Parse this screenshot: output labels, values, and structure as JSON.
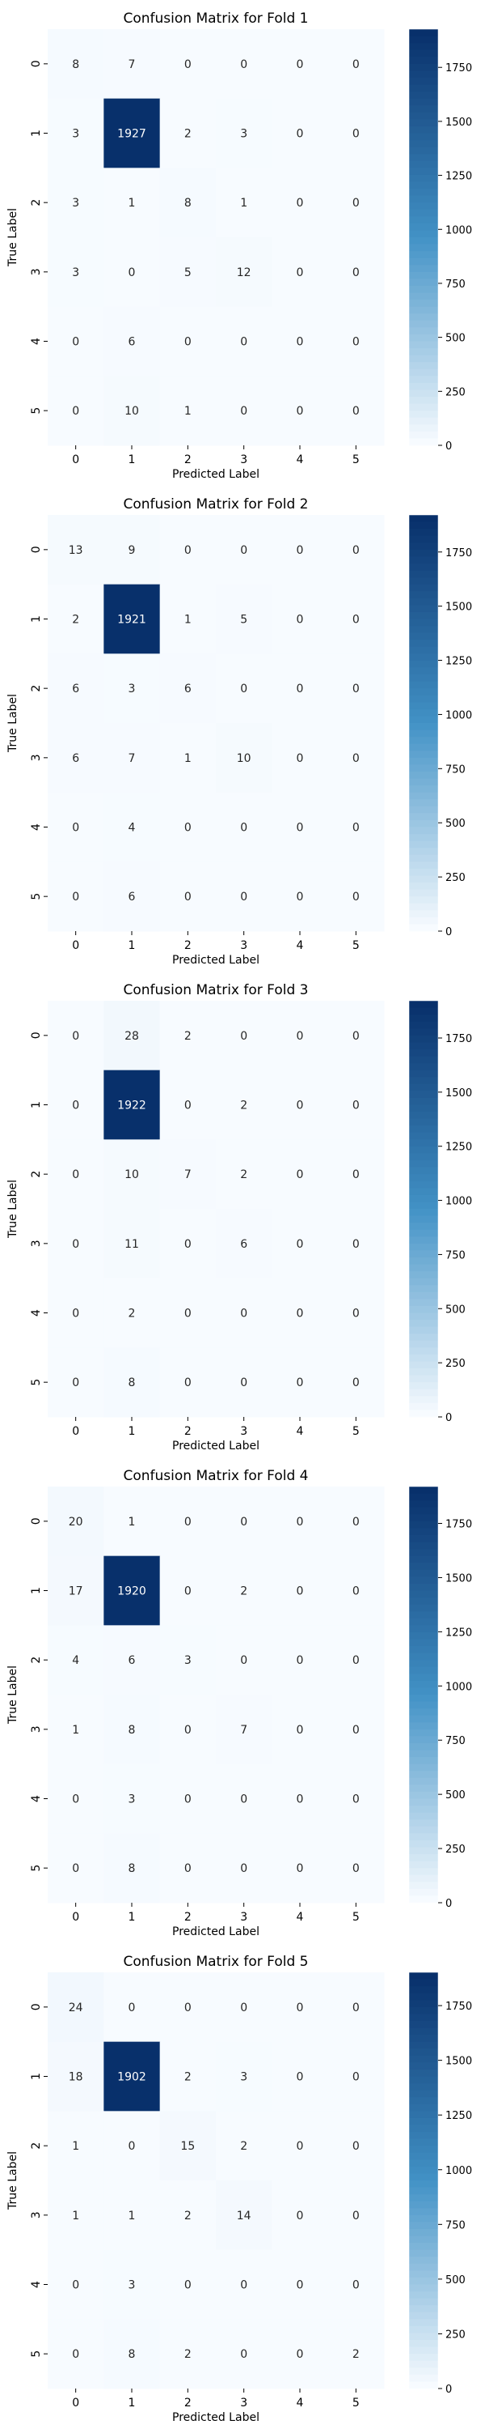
{
  "charts": {
    "type": "heatmap",
    "categories": [
      "0",
      "1",
      "2",
      "3",
      "4",
      "5"
    ],
    "xlabel": "Predicted Label",
    "ylabel": "True Label",
    "colorbar_ticks": [
      0,
      250,
      500,
      750,
      1000,
      1250,
      1500,
      1750
    ],
    "colormap_start": "#f7fbff",
    "colormap_end": "#08306b",
    "annotation_light": "#262626",
    "annotation_dark": "#ffffff",
    "panels": [
      {
        "title": "Confusion Matrix for Fold 1",
        "vmin": 0,
        "vmax": 1927,
        "matrix": [
          [
            8,
            7,
            0,
            0,
            0,
            0
          ],
          [
            3,
            1927,
            2,
            3,
            0,
            0
          ],
          [
            3,
            1,
            8,
            1,
            0,
            0
          ],
          [
            3,
            0,
            5,
            12,
            0,
            0
          ],
          [
            0,
            6,
            0,
            0,
            0,
            0
          ],
          [
            0,
            10,
            1,
            0,
            0,
            0
          ]
        ]
      },
      {
        "title": "Confusion Matrix for Fold 2",
        "vmin": 0,
        "vmax": 1921,
        "matrix": [
          [
            13,
            9,
            0,
            0,
            0,
            0
          ],
          [
            2,
            1921,
            1,
            5,
            0,
            0
          ],
          [
            6,
            3,
            6,
            0,
            0,
            0
          ],
          [
            6,
            7,
            1,
            10,
            0,
            0
          ],
          [
            0,
            4,
            0,
            0,
            0,
            0
          ],
          [
            0,
            6,
            0,
            0,
            0,
            0
          ]
        ]
      },
      {
        "title": "Confusion Matrix for Fold 3",
        "vmin": 0,
        "vmax": 1922,
        "matrix": [
          [
            0,
            28,
            2,
            0,
            0,
            0
          ],
          [
            0,
            1922,
            0,
            2,
            0,
            0
          ],
          [
            0,
            10,
            7,
            2,
            0,
            0
          ],
          [
            0,
            11,
            0,
            6,
            0,
            0
          ],
          [
            0,
            2,
            0,
            0,
            0,
            0
          ],
          [
            0,
            8,
            0,
            0,
            0,
            0
          ]
        ]
      },
      {
        "title": "Confusion Matrix for Fold 4",
        "vmin": 0,
        "vmax": 1920,
        "matrix": [
          [
            20,
            1,
            0,
            0,
            0,
            0
          ],
          [
            17,
            1920,
            0,
            2,
            0,
            0
          ],
          [
            4,
            6,
            3,
            0,
            0,
            0
          ],
          [
            1,
            8,
            0,
            7,
            0,
            0
          ],
          [
            0,
            3,
            0,
            0,
            0,
            0
          ],
          [
            0,
            8,
            0,
            0,
            0,
            0
          ]
        ]
      },
      {
        "title": "Confusion Matrix for Fold 5",
        "vmin": 0,
        "vmax": 1902,
        "matrix": [
          [
            24,
            0,
            0,
            0,
            0,
            0
          ],
          [
            18,
            1902,
            2,
            3,
            0,
            0
          ],
          [
            1,
            0,
            15,
            2,
            0,
            0
          ],
          [
            1,
            1,
            2,
            14,
            0,
            0
          ],
          [
            0,
            3,
            0,
            0,
            0,
            0
          ],
          [
            0,
            8,
            2,
            0,
            0,
            2
          ]
        ]
      }
    ]
  }
}
